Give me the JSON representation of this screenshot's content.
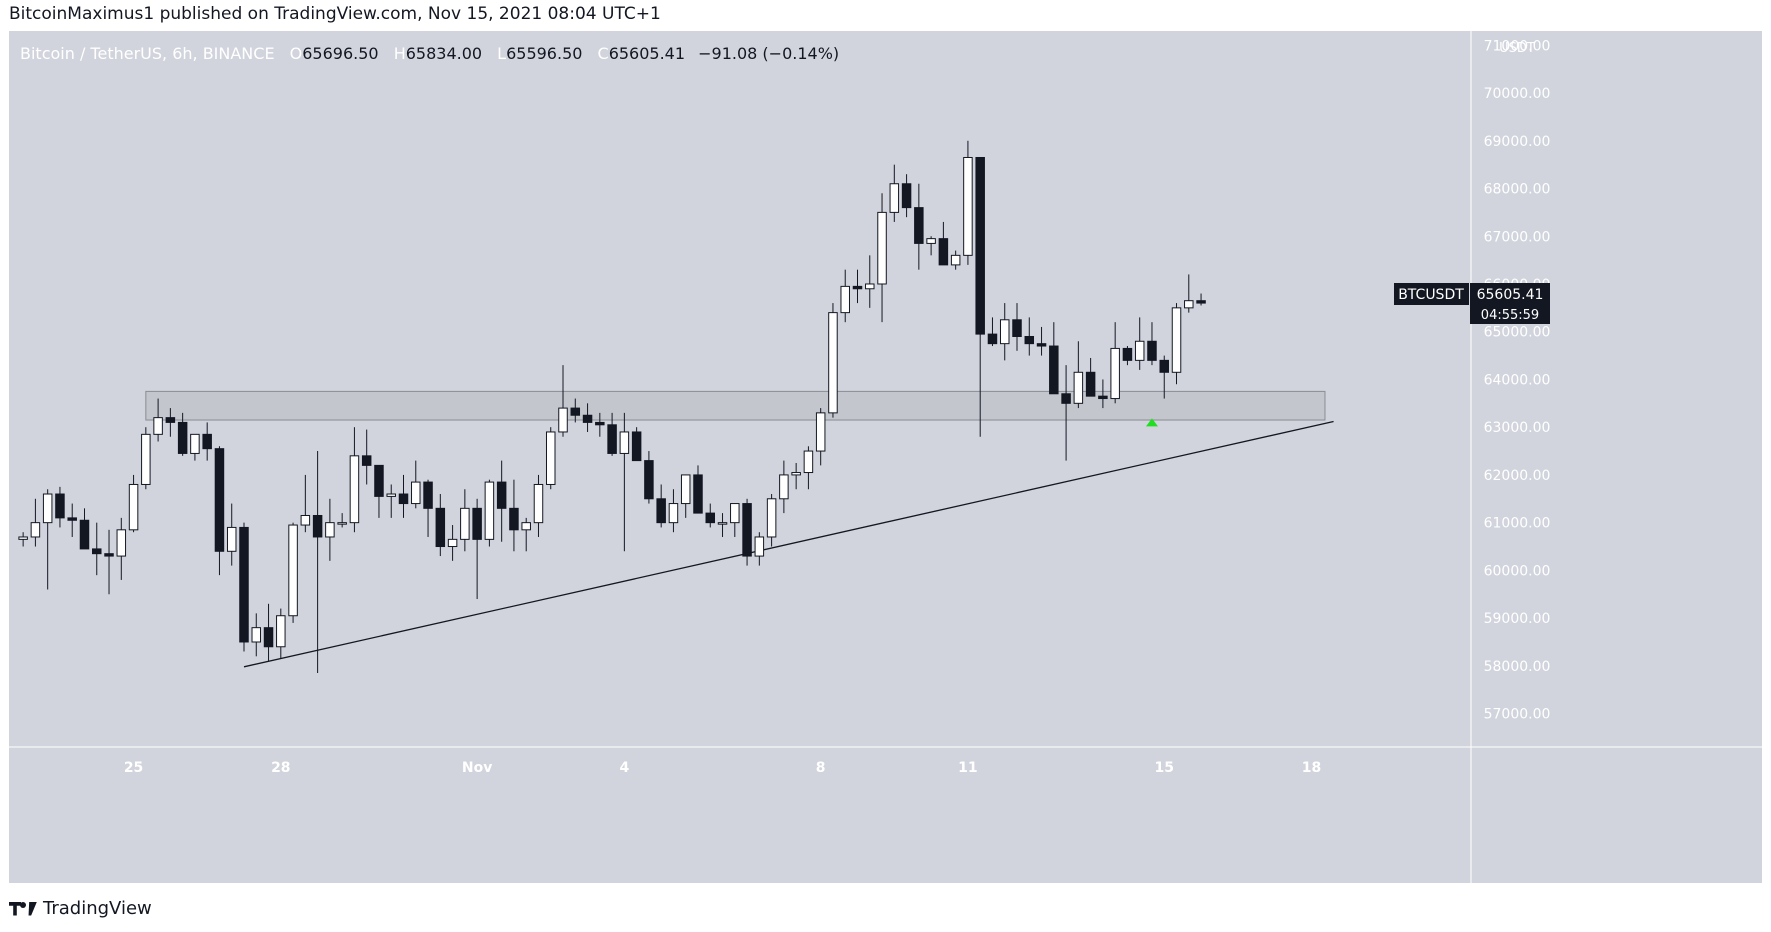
{
  "header": {
    "published_line": "BitcoinMaximus1 published on TradingView.com, Nov 15, 2021 08:04 UTC+1"
  },
  "legend": {
    "symbol": "Bitcoin / TetherUS, 6h, BINANCE",
    "o_key": "O",
    "o": "65696.50",
    "h_key": "H",
    "h": "65834.00",
    "l_key": "L",
    "l": "65596.50",
    "c_key": "C",
    "c": "65605.41",
    "change": "−91.08 (−0.14%)"
  },
  "price_tag": {
    "symbol": "BTCUSDT",
    "price": "65605.41",
    "countdown": "04:55:59"
  },
  "footer": {
    "brand": "TradingView"
  },
  "colors": {
    "background": "#d1d4dc",
    "up_candle": "#ffffff",
    "down_candle": "#131722",
    "zone_fill": "#c3c6cd",
    "marker": "#22dd22"
  },
  "chart_data": {
    "type": "candlestick",
    "interval": "6h",
    "y_unit": "USDT",
    "ylim": [
      56300,
      71300
    ],
    "ytick_values": [
      57000,
      58000,
      59000,
      60000,
      61000,
      62000,
      63000,
      64000,
      65000,
      66000,
      67000,
      68000,
      69000,
      70000,
      71000
    ],
    "ytick_labels": [
      "57000.00",
      "58000.00",
      "59000.00",
      "60000.00",
      "61000.00",
      "62000.00",
      "63000.00",
      "64000.00",
      "65000.00",
      "66000.00",
      "67000.00",
      "68000.00",
      "69000.00",
      "70000.00",
      "71000.00"
    ],
    "x_ticks": [
      {
        "label": "25",
        "index": 9.5
      },
      {
        "label": "28",
        "index": 21.5
      },
      {
        "label": "Nov",
        "index": 37.5
      },
      {
        "label": "4",
        "index": 49.5
      },
      {
        "label": "8",
        "index": 65.5
      },
      {
        "label": "11",
        "index": 77.5
      },
      {
        "label": "15",
        "index": 93.5
      },
      {
        "label": "18",
        "index": 105.5
      }
    ],
    "candles": [
      [
        60650,
        60800,
        60500,
        60700
      ],
      [
        60700,
        61500,
        60500,
        61000
      ],
      [
        61000,
        61700,
        59600,
        61600
      ],
      [
        61600,
        61750,
        60900,
        61100
      ],
      [
        61100,
        61400,
        60700,
        61050
      ],
      [
        61050,
        61300,
        60500,
        60450
      ],
      [
        60450,
        61000,
        59900,
        60350
      ],
      [
        60350,
        60850,
        59500,
        60300
      ],
      [
        60300,
        61100,
        59800,
        60850
      ],
      [
        60850,
        62000,
        60800,
        61800
      ],
      [
        61800,
        63000,
        61700,
        62850
      ],
      [
        62850,
        63600,
        62700,
        63200
      ],
      [
        63200,
        63400,
        62800,
        63100
      ],
      [
        63100,
        63300,
        62400,
        62450
      ],
      [
        62450,
        62800,
        62300,
        62850
      ],
      [
        62850,
        63100,
        62300,
        62550
      ],
      [
        62550,
        62600,
        59900,
        60400
      ],
      [
        60400,
        61400,
        60100,
        60900
      ],
      [
        60900,
        61000,
        58300,
        58500
      ],
      [
        58500,
        59100,
        58200,
        58800
      ],
      [
        58800,
        59300,
        58100,
        58400
      ],
      [
        58400,
        59200,
        58150,
        59050
      ],
      [
        59050,
        61000,
        58900,
        60950
      ],
      [
        60950,
        62000,
        60800,
        61150
      ],
      [
        61150,
        62500,
        57850,
        60700
      ],
      [
        60700,
        61500,
        60200,
        61000
      ],
      [
        61000,
        61200,
        60900,
        61000
      ],
      [
        61000,
        63000,
        60800,
        62400
      ],
      [
        62400,
        62950,
        61800,
        62200
      ],
      [
        62200,
        62200,
        61100,
        61550
      ],
      [
        61550,
        61800,
        61100,
        61600
      ],
      [
        61600,
        62000,
        61100,
        61400
      ],
      [
        61400,
        62300,
        61300,
        61850
      ],
      [
        61850,
        61900,
        60700,
        61300
      ],
      [
        61300,
        61600,
        60300,
        60500
      ],
      [
        60500,
        60950,
        60200,
        60650
      ],
      [
        60650,
        61700,
        60400,
        61300
      ],
      [
        61300,
        61500,
        59400,
        60650
      ],
      [
        60650,
        61900,
        60500,
        61850
      ],
      [
        61850,
        62300,
        60600,
        61300
      ],
      [
        61300,
        61900,
        60400,
        60850
      ],
      [
        60850,
        61100,
        60400,
        61000
      ],
      [
        61000,
        62000,
        60700,
        61800
      ],
      [
        61800,
        63000,
        61700,
        62900
      ],
      [
        62900,
        64300,
        62800,
        63400
      ],
      [
        63400,
        63600,
        63100,
        63250
      ],
      [
        63250,
        63500,
        62900,
        63100
      ],
      [
        63100,
        63300,
        62800,
        63050
      ],
      [
        63050,
        63300,
        62400,
        62450
      ],
      [
        62450,
        63300,
        60400,
        62900
      ],
      [
        62900,
        63000,
        62300,
        62300
      ],
      [
        62300,
        62500,
        61400,
        61500
      ],
      [
        61500,
        61800,
        60900,
        61000
      ],
      [
        61000,
        61700,
        60800,
        61400
      ],
      [
        61400,
        62000,
        61100,
        62000
      ],
      [
        62000,
        62200,
        61200,
        61200
      ],
      [
        61200,
        61400,
        60900,
        61000
      ],
      [
        61000,
        61200,
        60700,
        61000
      ],
      [
        61000,
        61400,
        60700,
        61400
      ],
      [
        61400,
        61500,
        60100,
        60300
      ],
      [
        60300,
        60800,
        60100,
        60700
      ],
      [
        60700,
        61600,
        60500,
        61500
      ],
      [
        61500,
        62300,
        61200,
        62000
      ],
      [
        62000,
        62250,
        61700,
        62050
      ],
      [
        62050,
        62600,
        61700,
        62500
      ],
      [
        62500,
        63400,
        62200,
        63300
      ],
      [
        63300,
        65600,
        63200,
        65400
      ],
      [
        65400,
        66300,
        65200,
        65950
      ],
      [
        65950,
        66300,
        65600,
        65900
      ],
      [
        65900,
        66600,
        65500,
        66000
      ],
      [
        66000,
        67900,
        65200,
        67500
      ],
      [
        67500,
        68500,
        67300,
        68100
      ],
      [
        68100,
        68300,
        67400,
        67600
      ],
      [
        67600,
        68100,
        66300,
        66850
      ],
      [
        66850,
        67000,
        66600,
        66950
      ],
      [
        66950,
        67300,
        66400,
        66400
      ],
      [
        66400,
        66700,
        66300,
        66600
      ],
      [
        66600,
        69000,
        66400,
        68650
      ],
      [
        68650,
        68650,
        62800,
        64950
      ],
      [
        64950,
        65300,
        64700,
        64750
      ],
      [
        64750,
        65600,
        64400,
        65250
      ],
      [
        65250,
        65600,
        64600,
        64900
      ],
      [
        64900,
        65300,
        64500,
        64750
      ],
      [
        64750,
        65100,
        64500,
        64700
      ],
      [
        64700,
        65200,
        63800,
        63700
      ],
      [
        63700,
        64300,
        62300,
        63500
      ],
      [
        63500,
        64800,
        63400,
        64150
      ],
      [
        64150,
        64450,
        63700,
        63650
      ],
      [
        63650,
        64000,
        63400,
        63600
      ],
      [
        63600,
        65200,
        63500,
        64650
      ],
      [
        64650,
        64700,
        64300,
        64400
      ],
      [
        64400,
        65300,
        64200,
        64800
      ],
      [
        64800,
        65200,
        64300,
        64400
      ],
      [
        64400,
        64500,
        63600,
        64150
      ],
      [
        64150,
        65600,
        63900,
        65500
      ],
      [
        65500,
        66200,
        65400,
        65650
      ],
      [
        65650,
        65800,
        65550,
        65600
      ]
    ],
    "resistance_zone": {
      "y_low": 63150,
      "y_high": 63750,
      "x_from_index": 10.5,
      "x_to_index": 106.6
    },
    "trendline": {
      "from": {
        "index": 18.5,
        "price": 57980
      },
      "to": {
        "index": 107.3,
        "price": 63120
      }
    },
    "marker": {
      "type": "up-arrow",
      "index": 92.5,
      "price": 63100
    }
  }
}
